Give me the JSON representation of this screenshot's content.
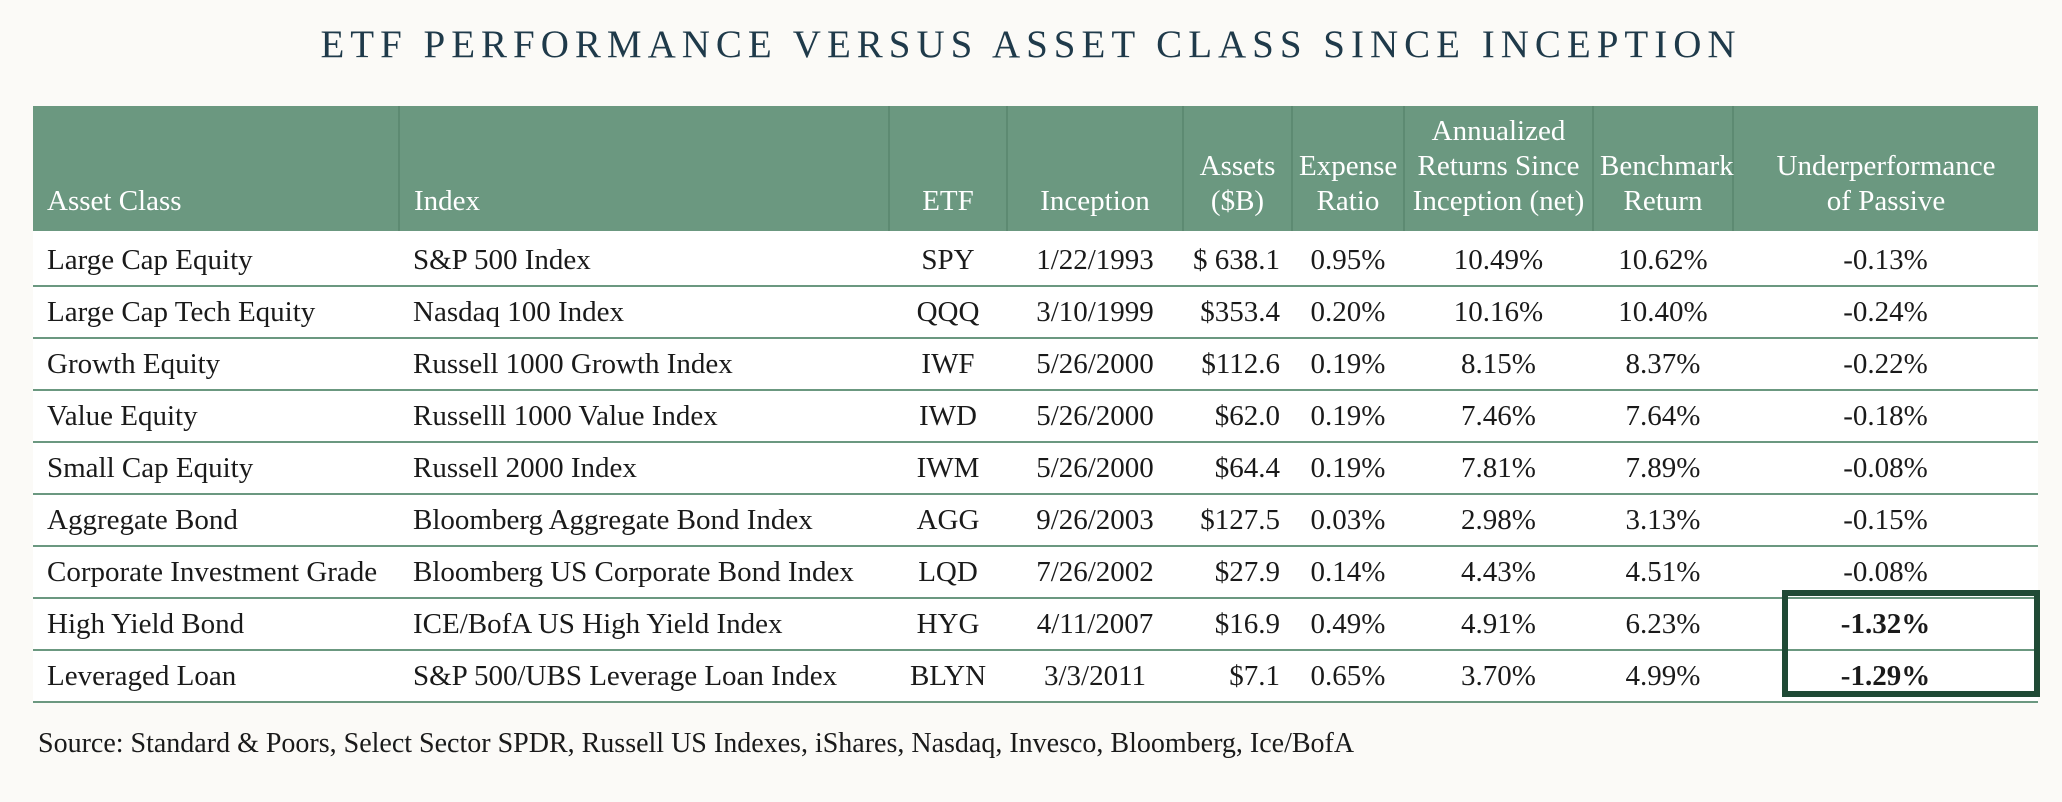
{
  "title": "ETF PERFORMANCE VERSUS ASSET CLASS SINCE INCEPTION",
  "headers": {
    "asset_class": "Asset Class",
    "index": "Index",
    "etf": "ETF",
    "inception": "Inception",
    "assets_line1": "Assets",
    "assets_line2": "($B)",
    "expense_line1": "Expense",
    "expense_line2": "Ratio",
    "annualized_line1": "Annualized",
    "annualized_line2": "Returns Since",
    "annualized_line3": "Inception (net)",
    "benchmark_line1": "Benchmark",
    "benchmark_line2": "Return",
    "under_line1": "Underperformance",
    "under_line2": "of Passive"
  },
  "rows": [
    {
      "asset_class": "Large Cap Equity",
      "index": "S&P 500 Index",
      "etf": "SPY",
      "inception": "1/22/1993",
      "assets": "$ 638.1",
      "expense": "0.95%",
      "annualized": "10.49%",
      "benchmark": "10.62%",
      "under": "-0.13%"
    },
    {
      "asset_class": "Large Cap Tech Equity",
      "index": "Nasdaq 100 Index",
      "etf": "QQQ",
      "inception": "3/10/1999",
      "assets": "$353.4",
      "expense": "0.20%",
      "annualized": "10.16%",
      "benchmark": "10.40%",
      "under": "-0.24%"
    },
    {
      "asset_class": "Growth Equity",
      "index": "Russell 1000 Growth Index",
      "etf": "IWF",
      "inception": "5/26/2000",
      "assets": "$112.6",
      "expense": "0.19%",
      "annualized": "8.15%",
      "benchmark": "8.37%",
      "under": "-0.22%"
    },
    {
      "asset_class": "Value Equity",
      "index": "Russelll 1000 Value Index",
      "etf": "IWD",
      "inception": "5/26/2000",
      "assets": "$62.0",
      "expense": "0.19%",
      "annualized": "7.46%",
      "benchmark": "7.64%",
      "under": "-0.18%"
    },
    {
      "asset_class": "Small Cap Equity",
      "index": "Russell 2000 Index",
      "etf": "IWM",
      "inception": "5/26/2000",
      "assets": "$64.4",
      "expense": "0.19%",
      "annualized": "7.81%",
      "benchmark": "7.89%",
      "under": "-0.08%"
    },
    {
      "asset_class": "Aggregate Bond",
      "index": "Bloomberg Aggregate Bond Index",
      "etf": "AGG",
      "inception": "9/26/2003",
      "assets": "$127.5",
      "expense": "0.03%",
      "annualized": "2.98%",
      "benchmark": "3.13%",
      "under": "-0.15%"
    },
    {
      "asset_class": "Corporate Investment Grade",
      "index": "Bloomberg US Corporate Bond Index",
      "etf": "LQD",
      "inception": "7/26/2002",
      "assets": "$27.9",
      "expense": "0.14%",
      "annualized": "4.43%",
      "benchmark": "4.51%",
      "under": "-0.08%"
    },
    {
      "asset_class": "High Yield Bond",
      "index": "ICE/BofA US High Yield Index",
      "etf": "HYG",
      "inception": "4/11/2007",
      "assets": "$16.9",
      "expense": "0.49%",
      "annualized": "4.91%",
      "benchmark": "6.23%",
      "under": "-1.32%"
    },
    {
      "asset_class": "Leveraged Loan",
      "index": "S&P 500/UBS Leverage Loan Index",
      "etf": "BLYN",
      "inception": "3/3/2011",
      "assets": "$7.1",
      "expense": "0.65%",
      "annualized": "3.70%",
      "benchmark": "4.99%",
      "under": "-1.29%"
    }
  ],
  "source": "Source: Standard & Poors, Select Sector SPDR, Russell US Indexes, iShares, Nasdaq, Invesco, Bloomberg, Ice/BofA",
  "colors": {
    "header_bg": "#6b9880",
    "highlight_border": "#1f4a35",
    "title": "#1f3a4a"
  }
}
